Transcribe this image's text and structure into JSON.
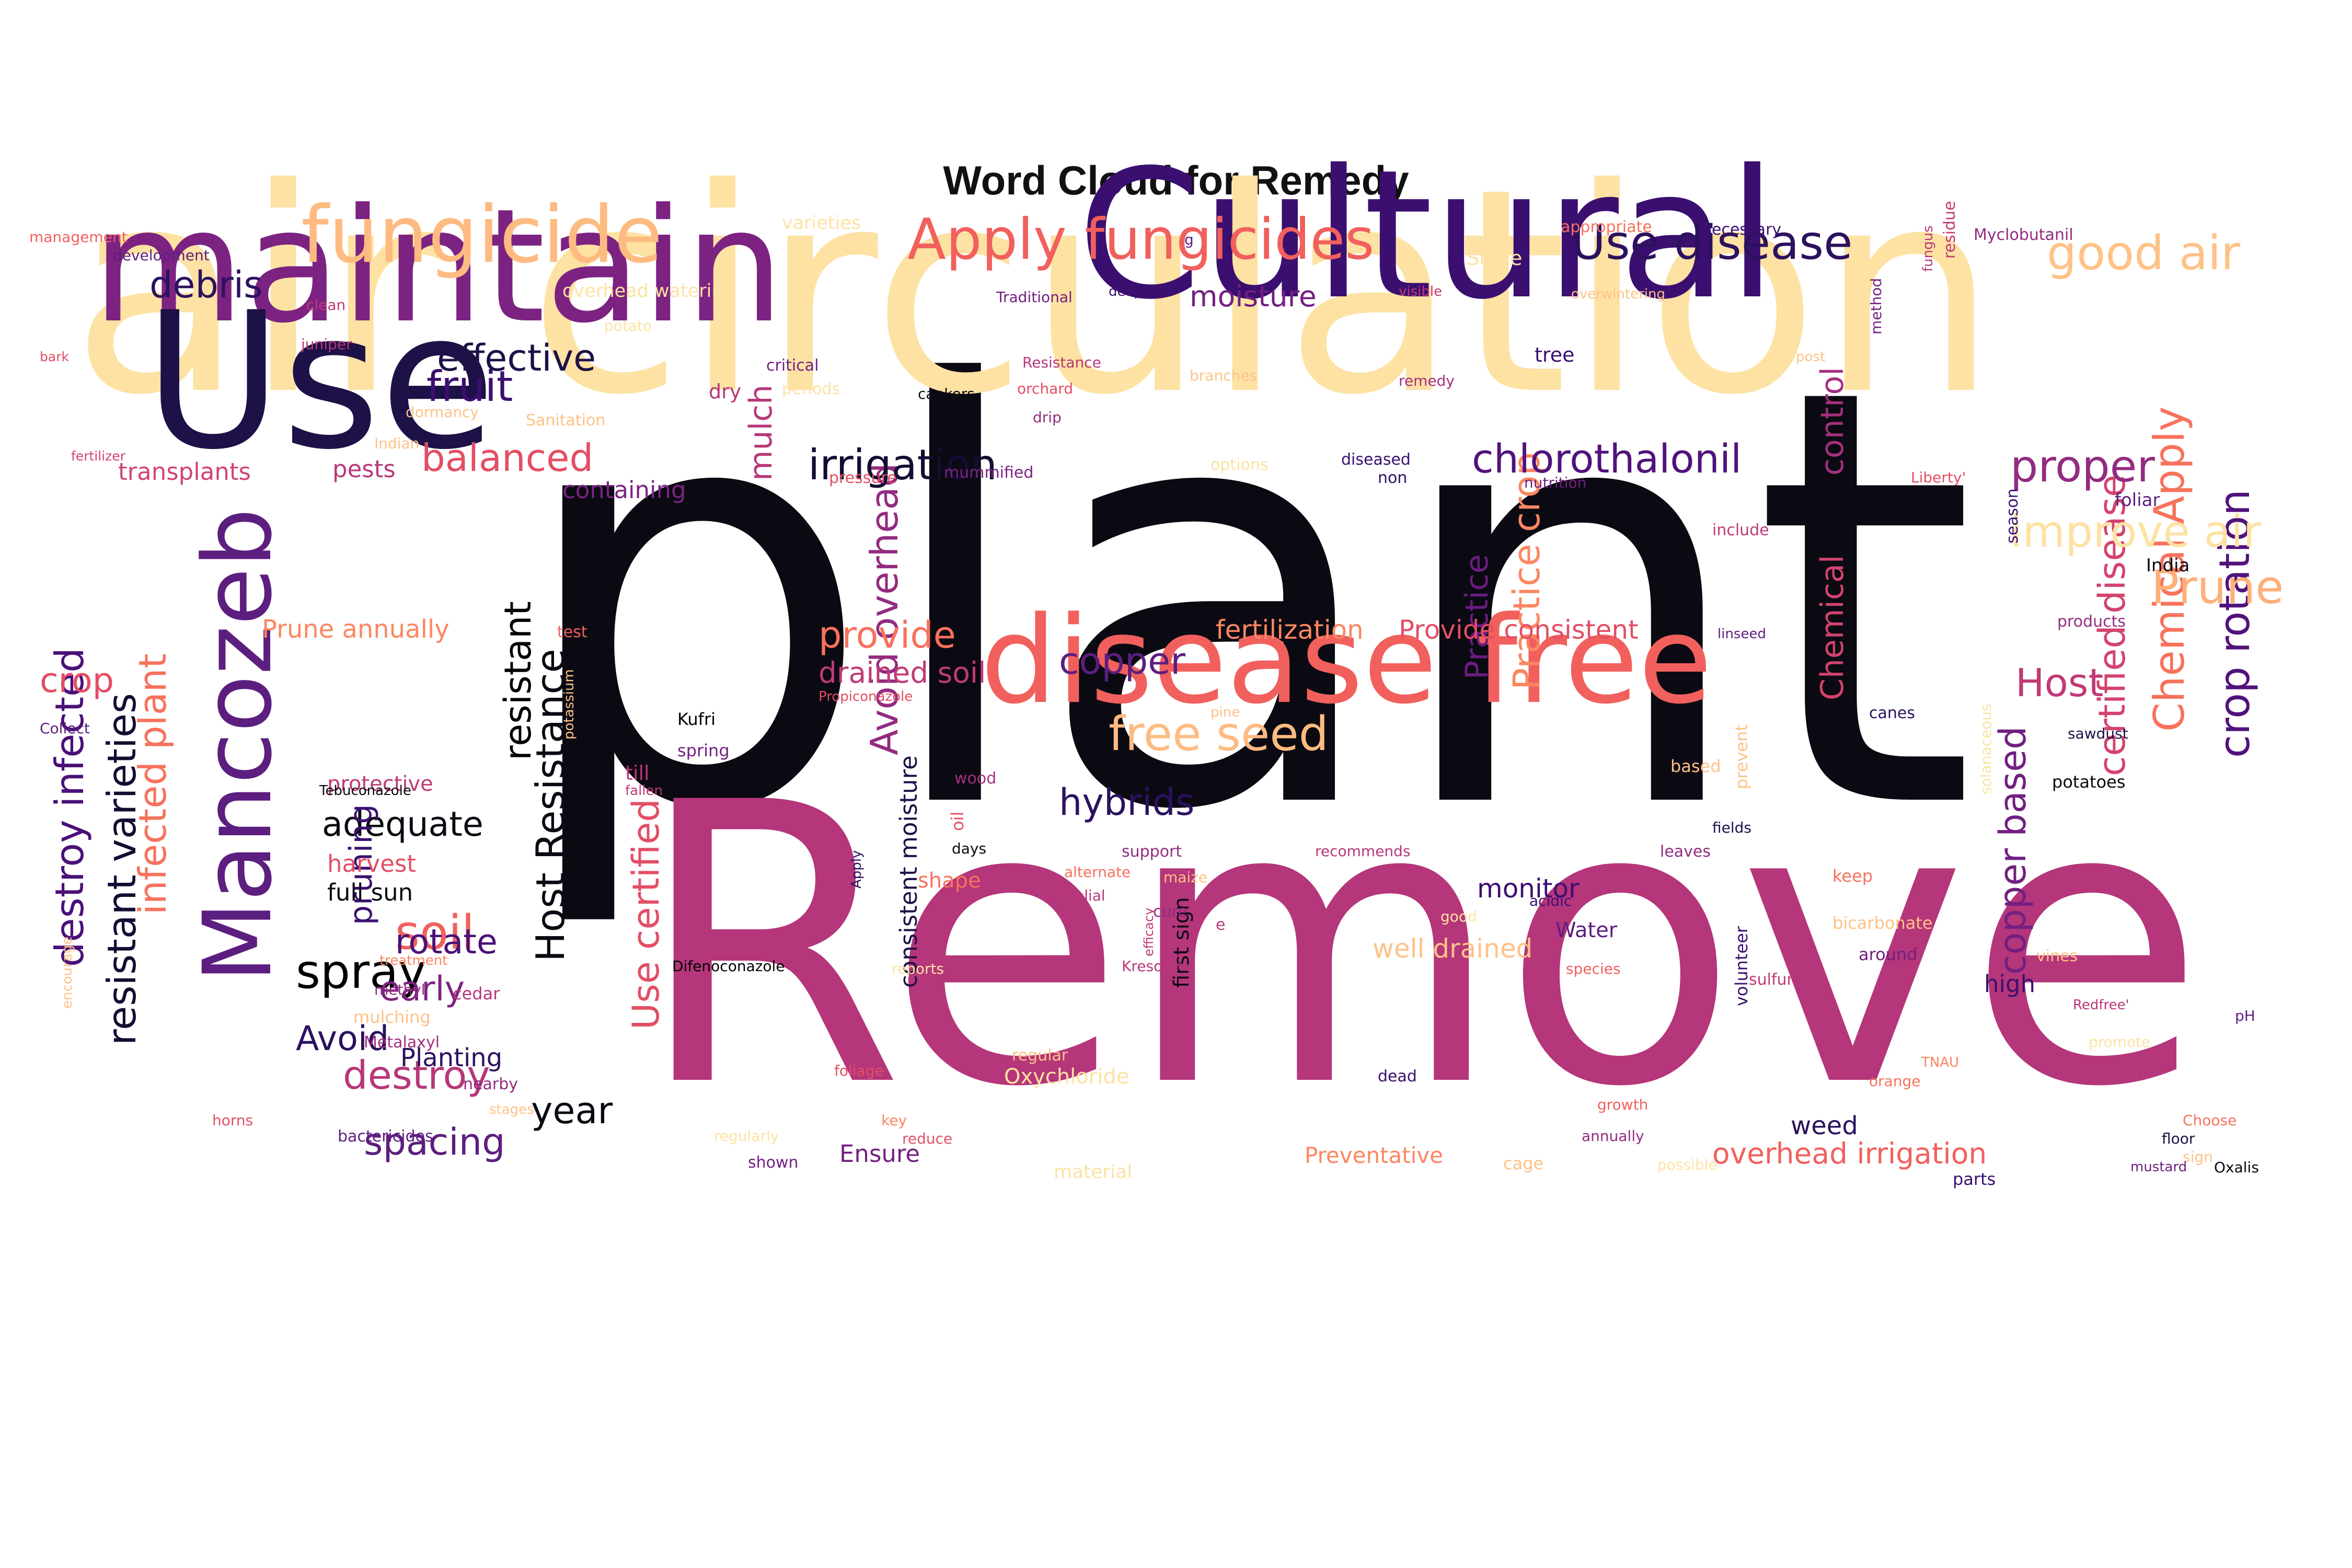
{
  "chart_data": {
    "type": "wordcloud",
    "title": "Word Cloud for Remedy",
    "colormap": "magma",
    "words": [
      {
        "text": "plant",
        "color": "#0b0a12"
      },
      {
        "text": "Remove",
        "color": "#b5367a"
      },
      {
        "text": "air circulation",
        "color": "#fde2a3"
      },
      {
        "text": "Cultural",
        "color": "#3b0f70"
      },
      {
        "text": "maintain",
        "color": "#7c2382"
      },
      {
        "text": "Use",
        "color": "#1d1147"
      },
      {
        "text": "disease free",
        "color": "#f1605d"
      },
      {
        "text": "Mancozeb",
        "color": "#5c1e7f"
      },
      {
        "text": "fungicide",
        "color": "#febb81"
      },
      {
        "text": "Apply fungicides",
        "color": "#f1605d"
      },
      {
        "text": "Use disease",
        "color": "#2c115f"
      },
      {
        "text": "good air",
        "color": "#fec287"
      },
      {
        "text": "Host Resistance",
        "color": "#0b0a12"
      },
      {
        "text": "resistant varieties",
        "color": "#120d31"
      },
      {
        "text": "destroy infected",
        "color": "#4a1079"
      },
      {
        "text": "infected plant",
        "color": "#f7725c"
      },
      {
        "text": "crop rotation",
        "color": "#51127c"
      },
      {
        "text": "Chemical Apply",
        "color": "#f7725c"
      },
      {
        "text": "certified disease",
        "color": "#d3436e"
      },
      {
        "text": "copper based",
        "color": "#721f81"
      },
      {
        "text": "Use certified",
        "color": "#e34e65"
      },
      {
        "text": "Practice crop",
        "color": "#fb8761"
      },
      {
        "text": "Avoid overhead",
        "color": "#932b80"
      },
      {
        "text": "free seed",
        "color": "#febb81"
      },
      {
        "text": "improve air",
        "color": "#fde2a3"
      },
      {
        "text": "Prune",
        "color": "#feb078"
      },
      {
        "text": "proper",
        "color": "#932b80"
      },
      {
        "text": "chlorothalonil",
        "color": "#51127c"
      },
      {
        "text": "irrigation",
        "color": "#120d31"
      },
      {
        "text": "mulch",
        "color": "#b73779"
      },
      {
        "text": "control",
        "color": "#a3307e"
      },
      {
        "text": "Chemical",
        "color": "#d3436e"
      },
      {
        "text": "Host",
        "color": "#c03a76"
      },
      {
        "text": "Practice",
        "color": "#6a1c81"
      },
      {
        "text": "resistant",
        "color": "#000004"
      },
      {
        "text": "fruit",
        "color": "#3b0f70"
      },
      {
        "text": "effective",
        "color": "#1d1147"
      },
      {
        "text": "debris",
        "color": "#2c115f"
      },
      {
        "text": "balanced",
        "color": "#e34e65"
      },
      {
        "text": "provide",
        "color": "#f7725c"
      },
      {
        "text": "copper",
        "color": "#5c1e7f"
      },
      {
        "text": "hybrids",
        "color": "#2c115f"
      },
      {
        "text": "adequate",
        "color": "#0b0a12"
      },
      {
        "text": "spray",
        "color": "#000004"
      },
      {
        "text": "soil",
        "color": "#f1605d"
      },
      {
        "text": "rotate",
        "color": "#4a1079"
      },
      {
        "text": "early",
        "color": "#7c2382"
      },
      {
        "text": "pruning",
        "color": "#3b0f70"
      },
      {
        "text": "destroy",
        "color": "#b73779"
      },
      {
        "text": "spacing",
        "color": "#5c1e7f"
      },
      {
        "text": "year",
        "color": "#0b0a12"
      },
      {
        "text": "Avoid",
        "color": "#2c115f"
      },
      {
        "text": "crop",
        "color": "#e34e65"
      },
      {
        "text": "drained soil",
        "color": "#c03a76"
      },
      {
        "text": "Provide consistent",
        "color": "#e34e65"
      },
      {
        "text": "overhead irrigation",
        "color": "#f1605d"
      },
      {
        "text": "monitor",
        "color": "#3b0f70"
      },
      {
        "text": "moisture",
        "color": "#721f81"
      },
      {
        "text": "fertilization",
        "color": "#fb8761"
      },
      {
        "text": "well drained",
        "color": "#fec287"
      },
      {
        "text": "Prune annually",
        "color": "#fb8761"
      },
      {
        "text": "pests",
        "color": "#b73779"
      },
      {
        "text": "transplants",
        "color": "#d3436e"
      },
      {
        "text": "containing",
        "color": "#7c2382"
      },
      {
        "text": "harvest",
        "color": "#e34e65"
      },
      {
        "text": "full sun",
        "color": "#0b0a12"
      },
      {
        "text": "protective",
        "color": "#c03a76"
      },
      {
        "text": "Planting",
        "color": "#2c115f"
      },
      {
        "text": "Ensure",
        "color": "#721f81"
      },
      {
        "text": "Preventative",
        "color": "#fb8761"
      },
      {
        "text": "consistent moisture",
        "color": "#1d1147"
      },
      {
        "text": "first sign",
        "color": "#0b0a12"
      },
      {
        "text": "Oxychloride",
        "color": "#fde2a3"
      },
      {
        "text": "weed",
        "color": "#2c115f"
      },
      {
        "text": "Water",
        "color": "#5c1e7f"
      },
      {
        "text": "high",
        "color": "#3b0f70"
      },
      {
        "text": "Stake",
        "color": "#fde2a3"
      },
      {
        "text": "varieties",
        "color": "#fde2a3"
      },
      {
        "text": "overhead watering",
        "color": "#fde2a3"
      },
      {
        "text": "dry",
        "color": "#b73779"
      },
      {
        "text": "tree",
        "color": "#3b0f70"
      },
      {
        "text": "management",
        "color": "#f1605d"
      },
      {
        "text": "development",
        "color": "#5c1e7f"
      },
      {
        "text": "clean",
        "color": "#c03a76"
      },
      {
        "text": "juniper",
        "color": "#b73779"
      },
      {
        "text": "bark",
        "color": "#e34e65"
      },
      {
        "text": "fertilizer",
        "color": "#d3436e"
      },
      {
        "text": "critical",
        "color": "#721f81"
      },
      {
        "text": "periods",
        "color": "#fde2a3"
      },
      {
        "text": "Traditional",
        "color": "#721f81"
      },
      {
        "text": "deeply",
        "color": "#3b0f70"
      },
      {
        "text": "visible",
        "color": "#c03a76"
      },
      {
        "text": "appropriate",
        "color": "#f7725c"
      },
      {
        "text": "necessary",
        "color": "#3b0f70"
      },
      {
        "text": "Myclobutanil",
        "color": "#932b80"
      },
      {
        "text": "overwintering",
        "color": "#fec287"
      },
      {
        "text": "fungus",
        "color": "#b73779"
      },
      {
        "text": "residue",
        "color": "#c03a76"
      },
      {
        "text": "method",
        "color": "#721f81"
      },
      {
        "text": "Resistance",
        "color": "#b73779"
      },
      {
        "text": "orchard",
        "color": "#e34e65"
      },
      {
        "text": "drip",
        "color": "#932b80"
      },
      {
        "text": "branches",
        "color": "#fec287"
      },
      {
        "text": "remedy",
        "color": "#a3307e"
      },
      {
        "text": "cankers",
        "color": "#0b0a12"
      },
      {
        "text": "potato",
        "color": "#fde2a3"
      },
      {
        "text": "Sanitation",
        "color": "#fec287"
      },
      {
        "text": "dormancy",
        "color": "#fec287"
      },
      {
        "text": "Indian",
        "color": "#fec287"
      },
      {
        "text": "pressure",
        "color": "#e34e65"
      },
      {
        "text": "mummified",
        "color": "#7c2382"
      },
      {
        "text": "options",
        "color": "#fde2a3"
      },
      {
        "text": "diseased",
        "color": "#3b0f70"
      },
      {
        "text": "non",
        "color": "#2c115f"
      },
      {
        "text": "nutrition",
        "color": "#721f81"
      },
      {
        "text": "Liberty'",
        "color": "#e34e65"
      },
      {
        "text": "season",
        "color": "#3b0f70"
      },
      {
        "text": "foliar",
        "color": "#5c1e7f"
      },
      {
        "text": "include",
        "color": "#c03a76"
      },
      {
        "text": "India",
        "color": "#0b0a12"
      },
      {
        "text": "products",
        "color": "#932b80"
      },
      {
        "text": "linseed",
        "color": "#5c1e7f"
      },
      {
        "text": "test",
        "color": "#f1605d"
      },
      {
        "text": "potassium",
        "color": "#fec287"
      },
      {
        "text": "Kufri",
        "color": "#000004"
      },
      {
        "text": "spring",
        "color": "#721f81"
      },
      {
        "text": "till",
        "color": "#b73779"
      },
      {
        "text": "fallen",
        "color": "#c03a76"
      },
      {
        "text": "Propiconazole",
        "color": "#e34e65"
      },
      {
        "text": "pine",
        "color": "#fec287"
      },
      {
        "text": "wood",
        "color": "#a3307e"
      },
      {
        "text": "oil",
        "color": "#e34e65"
      },
      {
        "text": "days",
        "color": "#0b0a12"
      },
      {
        "text": "Apply",
        "color": "#2c115f"
      },
      {
        "text": "support",
        "color": "#932b80"
      },
      {
        "text": "alternate",
        "color": "#f7725c"
      },
      {
        "text": "maize",
        "color": "#fec287"
      },
      {
        "text": "telial",
        "color": "#b73779"
      },
      {
        "text": "cure",
        "color": "#932b80"
      },
      {
        "text": "e",
        "color": "#c03a76"
      },
      {
        "text": "shape",
        "color": "#f7725c"
      },
      {
        "text": "recommends",
        "color": "#b73779"
      },
      {
        "text": "based",
        "color": "#fec287"
      },
      {
        "text": "prevent",
        "color": "#fec287"
      },
      {
        "text": "volunteer",
        "color": "#3b0f70"
      },
      {
        "text": "fields",
        "color": "#1d1147"
      },
      {
        "text": "leaves",
        "color": "#932b80"
      },
      {
        "text": "acidic",
        "color": "#3b0f70"
      },
      {
        "text": "good",
        "color": "#fde2a3"
      },
      {
        "text": "keep",
        "color": "#f7725c"
      },
      {
        "text": "bicarbonate",
        "color": "#fec287"
      },
      {
        "text": "canes",
        "color": "#2c115f"
      },
      {
        "text": "sawdust",
        "color": "#1d1147"
      },
      {
        "text": "potatoes",
        "color": "#0b0a12"
      },
      {
        "text": "solanaceous",
        "color": "#fde2a3"
      },
      {
        "text": "around",
        "color": "#721f81"
      },
      {
        "text": "vines",
        "color": "#fec287"
      },
      {
        "text": "pH",
        "color": "#5c1e7f"
      },
      {
        "text": "Redfree'",
        "color": "#b73779"
      },
      {
        "text": "promote",
        "color": "#fde2a3"
      },
      {
        "text": "TNAU",
        "color": "#fb8761"
      },
      {
        "text": "Collect",
        "color": "#5c1e7f"
      },
      {
        "text": "Tebuconazole",
        "color": "#0b0a12"
      },
      {
        "text": "treatment",
        "color": "#fb8761"
      },
      {
        "text": "methyl",
        "color": "#932b80"
      },
      {
        "text": "cedar",
        "color": "#b73779"
      },
      {
        "text": "mulching",
        "color": "#fec287"
      },
      {
        "text": "Metalaxyl",
        "color": "#a3307e"
      },
      {
        "text": "encourage",
        "color": "#fec287"
      },
      {
        "text": "nearby",
        "color": "#932b80"
      },
      {
        "text": "horns",
        "color": "#e34e65"
      },
      {
        "text": "stages",
        "color": "#fec287"
      },
      {
        "text": "bactericides",
        "color": "#5c1e7f"
      },
      {
        "text": "Difenoconazole",
        "color": "#000004"
      },
      {
        "text": "efficacy",
        "color": "#c03a76"
      },
      {
        "text": "Kresoxim",
        "color": "#b73779"
      },
      {
        "text": "reports",
        "color": "#fde2a3"
      },
      {
        "text": "regular",
        "color": "#fec287"
      },
      {
        "text": "foliage",
        "color": "#e34e65"
      },
      {
        "text": "key",
        "color": "#fb8761"
      },
      {
        "text": "reduce",
        "color": "#e34e65"
      },
      {
        "text": "regularly",
        "color": "#fde2a3"
      },
      {
        "text": "shown",
        "color": "#721f81"
      },
      {
        "text": "material",
        "color": "#fde2a3"
      },
      {
        "text": "cage",
        "color": "#fec287"
      },
      {
        "text": "dead",
        "color": "#3b0f70"
      },
      {
        "text": "growth",
        "color": "#f1605d"
      },
      {
        "text": "orange",
        "color": "#f7725c"
      },
      {
        "text": "annually",
        "color": "#932b80"
      },
      {
        "text": "Choose",
        "color": "#f7725c"
      },
      {
        "text": "floor",
        "color": "#1d1147"
      },
      {
        "text": "sign",
        "color": "#fec287"
      },
      {
        "text": "parts",
        "color": "#3b0f70"
      },
      {
        "text": "species",
        "color": "#f1605d"
      },
      {
        "text": "sulfur",
        "color": "#c03a76"
      },
      {
        "text": "possible",
        "color": "#fde2a3"
      },
      {
        "text": "mustard",
        "color": "#721f81"
      },
      {
        "text": "Oxalis",
        "color": "#0b0a12"
      },
      {
        "text": "g",
        "color": "#5c1e7f"
      },
      {
        "text": "post",
        "color": "#fec287"
      }
    ]
  }
}
